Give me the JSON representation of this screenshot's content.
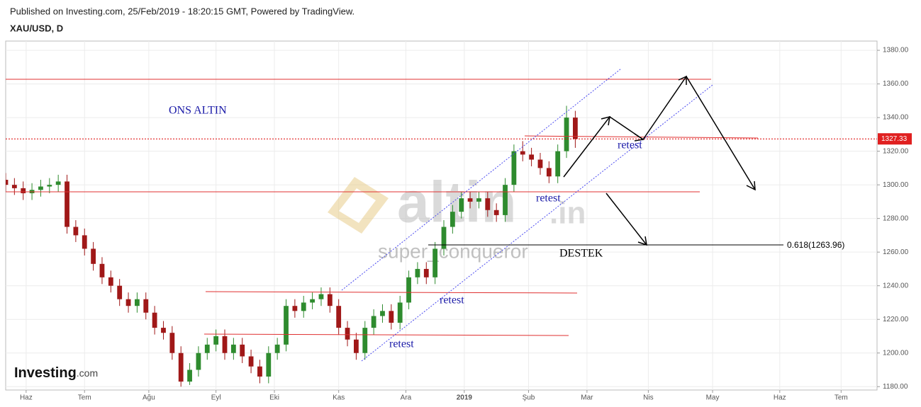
{
  "header": {
    "published": "Published on Investing.com, 25/Feb/2019 - 18:20:15 GMT, Powered by TradingView."
  },
  "chart_data": {
    "type": "candlestick",
    "title": "XAU/USD, D",
    "x": [
      -7,
      -4,
      -1,
      2,
      5,
      8,
      11,
      14,
      17,
      20,
      23,
      26,
      29,
      32,
      35,
      38,
      41,
      44,
      47,
      50,
      53,
      56,
      59,
      62,
      65,
      68,
      71,
      74,
      77,
      80,
      83,
      86,
      89,
      92,
      95,
      98,
      101,
      104,
      107,
      110,
      113,
      116,
      119,
      122,
      125,
      128,
      131,
      134,
      137,
      140,
      143,
      146,
      149,
      152,
      155,
      158,
      161,
      164,
      167,
      170,
      173,
      176,
      179,
      182,
      185,
      188
    ],
    "open": [
      1303,
      1300,
      1298,
      1295,
      1297,
      1299,
      1300,
      1302,
      1275,
      1270,
      1262,
      1253,
      1245,
      1240,
      1232,
      1228,
      1232,
      1224,
      1215,
      1212,
      1200,
      1183,
      1190,
      1200,
      1205,
      1210,
      1200,
      1205,
      1198,
      1192,
      1186,
      1200,
      1205,
      1228,
      1225,
      1230,
      1232,
      1235,
      1228,
      1215,
      1208,
      1200,
      1215,
      1222,
      1225,
      1218,
      1230,
      1245,
      1250,
      1245,
      1262,
      1275,
      1284,
      1292,
      1290,
      1292,
      1285,
      1282,
      1300,
      1320,
      1318,
      1315,
      1310,
      1305,
      1320,
      1340
    ],
    "high": [
      1307,
      1304,
      1302,
      1301,
      1303,
      1304,
      1306,
      1306,
      1279,
      1274,
      1266,
      1257,
      1249,
      1244,
      1236,
      1236,
      1236,
      1228,
      1219,
      1216,
      1204,
      1194,
      1204,
      1209,
      1214,
      1214,
      1209,
      1209,
      1202,
      1196,
      1204,
      1209,
      1232,
      1232,
      1234,
      1236,
      1239,
      1239,
      1232,
      1219,
      1212,
      1219,
      1226,
      1229,
      1229,
      1234,
      1249,
      1254,
      1254,
      1266,
      1279,
      1288,
      1296,
      1296,
      1296,
      1296,
      1289,
      1304,
      1324,
      1326,
      1322,
      1319,
      1314,
      1324,
      1347,
      1344
    ],
    "low": [
      1296,
      1294,
      1291,
      1291,
      1293,
      1295,
      1296,
      1271,
      1266,
      1258,
      1249,
      1241,
      1236,
      1228,
      1224,
      1224,
      1220,
      1211,
      1208,
      1196,
      1180,
      1181,
      1186,
      1196,
      1201,
      1196,
      1196,
      1194,
      1188,
      1182,
      1182,
      1196,
      1201,
      1221,
      1221,
      1226,
      1228,
      1224,
      1211,
      1204,
      1196,
      1196,
      1211,
      1218,
      1214,
      1214,
      1226,
      1241,
      1241,
      1241,
      1258,
      1271,
      1280,
      1286,
      1286,
      1281,
      1278,
      1278,
      1296,
      1314,
      1311,
      1306,
      1301,
      1301,
      1316,
      1322
    ],
    "close": [
      1300,
      1298,
      1295,
      1297,
      1299,
      1300,
      1302,
      1275,
      1270,
      1262,
      1253,
      1245,
      1240,
      1232,
      1228,
      1232,
      1224,
      1215,
      1212,
      1200,
      1183,
      1190,
      1200,
      1205,
      1210,
      1200,
      1205,
      1198,
      1192,
      1186,
      1200,
      1205,
      1228,
      1225,
      1230,
      1232,
      1235,
      1228,
      1215,
      1208,
      1200,
      1215,
      1222,
      1225,
      1218,
      1230,
      1245,
      1250,
      1245,
      1262,
      1275,
      1284,
      1292,
      1290,
      1292,
      1285,
      1282,
      1300,
      1320,
      1318,
      1315,
      1310,
      1305,
      1320,
      1340,
      1327.33
    ],
    "up_color": "#2e8b2e",
    "down_color": "#a01818",
    "xlim": [
      -7,
      291.3
    ],
    "xticks": [
      {
        "value": 0,
        "label": "Haz"
      },
      {
        "value": 20,
        "label": "Tem"
      },
      {
        "value": 42,
        "label": "Ağu"
      },
      {
        "value": 65,
        "label": "Eyl"
      },
      {
        "value": 85,
        "label": "Eki"
      },
      {
        "value": 107,
        "label": "Kas"
      },
      {
        "value": 130,
        "label": "Ara"
      },
      {
        "value": 150,
        "label": "2019"
      },
      {
        "value": 172,
        "label": "Şub"
      },
      {
        "value": 192,
        "label": "Mar"
      },
      {
        "value": 213,
        "label": "Nis"
      },
      {
        "value": 235,
        "label": "May"
      },
      {
        "value": 258,
        "label": "Haz"
      },
      {
        "value": 279,
        "label": "Tem"
      }
    ],
    "ylim": [
      1178,
      1385.5
    ],
    "yticks": [
      {
        "value": 1180,
        "label": "1180.00"
      },
      {
        "value": 1200,
        "label": "1200.00"
      },
      {
        "value": 1220,
        "label": "1220.00"
      },
      {
        "value": 1240,
        "label": "1240.00"
      },
      {
        "value": 1260,
        "label": "1260.00"
      },
      {
        "value": 1280,
        "label": "1280.00"
      },
      {
        "value": 1300,
        "label": "1300.00"
      },
      {
        "value": 1320,
        "label": "1320.00"
      },
      {
        "value": 1340,
        "label": "1340.00"
      },
      {
        "value": 1360,
        "label": "1360.00"
      },
      {
        "value": 1380,
        "label": "1380.00"
      }
    ],
    "grid": true,
    "annotations": [
      "ONS ALTIN",
      "retest",
      "retest",
      "retest",
      "retest",
      "DESTEK",
      "0.618(1263.96)"
    ]
  },
  "watermark": {
    "brand": "altin",
    "suffix": ".in",
    "author": "super_conqueror"
  },
  "logo": {
    "name": "Investing",
    "suffix": ".com"
  }
}
